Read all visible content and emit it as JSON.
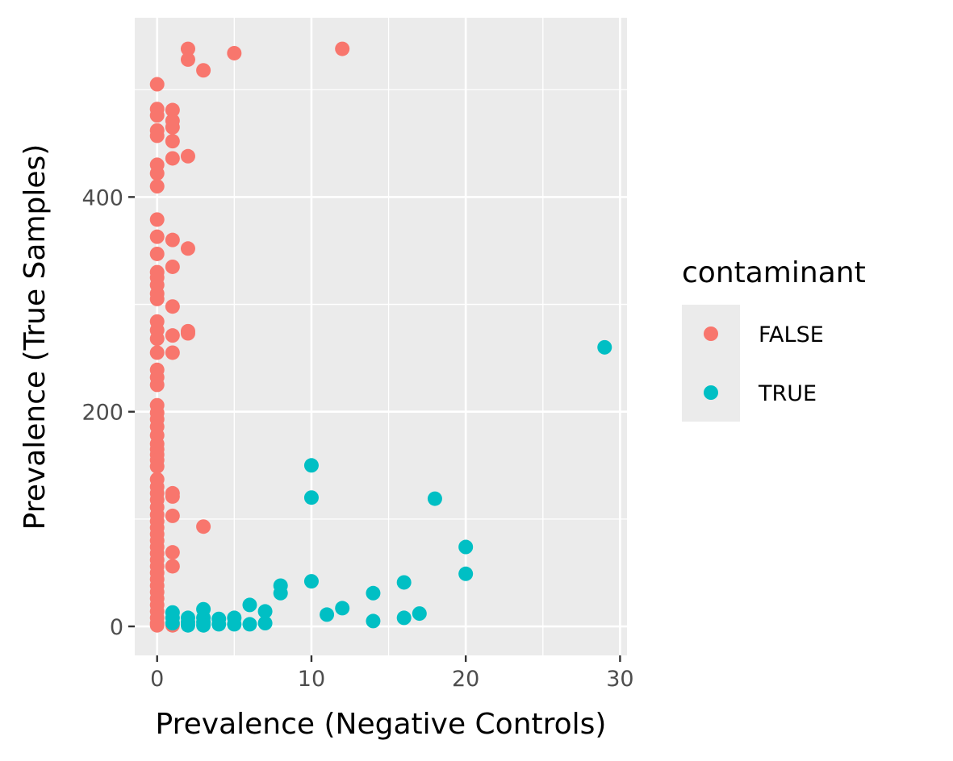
{
  "chart_data": {
    "type": "scatter",
    "title": "",
    "xlabel": "Prevalence (Negative Controls)",
    "ylabel": "Prevalence (True Samples)",
    "xlim": [
      -1.45,
      30.45
    ],
    "ylim": [
      -27,
      567
    ],
    "x_ticks": [
      0,
      10,
      20,
      30
    ],
    "x_tick_labels": [
      "0",
      "10",
      "20",
      "30"
    ],
    "y_ticks": [
      0,
      200,
      400
    ],
    "y_tick_labels": [
      "0",
      "200",
      "400"
    ],
    "x_minor": [
      5,
      15,
      25
    ],
    "y_minor": [
      100,
      300,
      500
    ],
    "grid": true,
    "legend": {
      "title": "contaminant",
      "position": "right",
      "entries": [
        {
          "label": "FALSE",
          "color": "#F8766D"
        },
        {
          "label": "TRUE",
          "color": "#00BFC4"
        }
      ]
    },
    "series": [
      {
        "name": "FALSE",
        "color": "#F8766D",
        "points": [
          [
            0,
            505
          ],
          [
            0,
            482
          ],
          [
            0,
            476
          ],
          [
            0,
            462
          ],
          [
            0,
            457
          ],
          [
            0,
            430
          ],
          [
            0,
            422
          ],
          [
            0,
            410
          ],
          [
            0,
            379
          ],
          [
            0,
            363
          ],
          [
            0,
            347
          ],
          [
            0,
            330
          ],
          [
            0,
            325
          ],
          [
            0,
            318
          ],
          [
            0,
            310
          ],
          [
            0,
            305
          ],
          [
            0,
            284
          ],
          [
            0,
            276
          ],
          [
            0,
            268
          ],
          [
            0,
            255
          ],
          [
            0,
            239
          ],
          [
            0,
            232
          ],
          [
            0,
            225
          ],
          [
            0,
            206
          ],
          [
            0,
            199
          ],
          [
            0,
            193
          ],
          [
            0,
            186
          ],
          [
            0,
            178
          ],
          [
            0,
            170
          ],
          [
            0,
            165
          ],
          [
            0,
            160
          ],
          [
            0,
            155
          ],
          [
            0,
            149
          ],
          [
            0,
            137
          ],
          [
            0,
            130
          ],
          [
            0,
            124
          ],
          [
            0,
            118
          ],
          [
            0,
            111
          ],
          [
            0,
            104
          ],
          [
            0,
            98
          ],
          [
            0,
            92
          ],
          [
            0,
            86
          ],
          [
            0,
            80
          ],
          [
            0,
            74
          ],
          [
            0,
            68
          ],
          [
            0,
            62
          ],
          [
            0,
            56
          ],
          [
            0,
            50
          ],
          [
            0,
            44
          ],
          [
            0,
            38
          ],
          [
            0,
            32
          ],
          [
            0,
            26
          ],
          [
            0,
            20
          ],
          [
            0,
            14
          ],
          [
            0,
            8
          ],
          [
            0,
            3
          ],
          [
            0,
            1
          ],
          [
            1,
            481
          ],
          [
            1,
            471
          ],
          [
            1,
            465
          ],
          [
            1,
            452
          ],
          [
            1,
            436
          ],
          [
            1,
            360
          ],
          [
            1,
            335
          ],
          [
            1,
            298
          ],
          [
            1,
            271
          ],
          [
            1,
            255
          ],
          [
            1,
            124
          ],
          [
            1,
            121
          ],
          [
            1,
            103
          ],
          [
            1,
            69
          ],
          [
            1,
            56
          ],
          [
            1,
            1
          ],
          [
            2,
            538
          ],
          [
            2,
            528
          ],
          [
            2,
            438
          ],
          [
            2,
            352
          ],
          [
            2,
            273
          ],
          [
            2,
            275
          ],
          [
            3,
            518
          ],
          [
            3,
            93
          ],
          [
            5,
            534
          ],
          [
            12,
            538
          ]
        ]
      },
      {
        "name": "TRUE",
        "color": "#00BFC4",
        "points": [
          [
            1,
            13
          ],
          [
            1,
            8
          ],
          [
            1,
            3
          ],
          [
            2,
            8
          ],
          [
            2,
            4
          ],
          [
            2,
            1
          ],
          [
            3,
            16
          ],
          [
            3,
            8
          ],
          [
            3,
            4
          ],
          [
            3,
            1
          ],
          [
            4,
            7
          ],
          [
            4,
            2
          ],
          [
            5,
            8
          ],
          [
            5,
            2
          ],
          [
            6,
            20
          ],
          [
            6,
            2
          ],
          [
            7,
            14
          ],
          [
            7,
            3
          ],
          [
            8,
            38
          ],
          [
            8,
            31
          ],
          [
            10,
            150
          ],
          [
            10,
            120
          ],
          [
            10,
            42
          ],
          [
            11,
            11
          ],
          [
            12,
            17
          ],
          [
            14,
            31
          ],
          [
            14,
            5
          ],
          [
            16,
            41
          ],
          [
            16,
            8
          ],
          [
            17,
            12
          ],
          [
            18,
            119
          ],
          [
            20,
            74
          ],
          [
            20,
            49
          ],
          [
            29,
            260
          ]
        ]
      }
    ]
  }
}
